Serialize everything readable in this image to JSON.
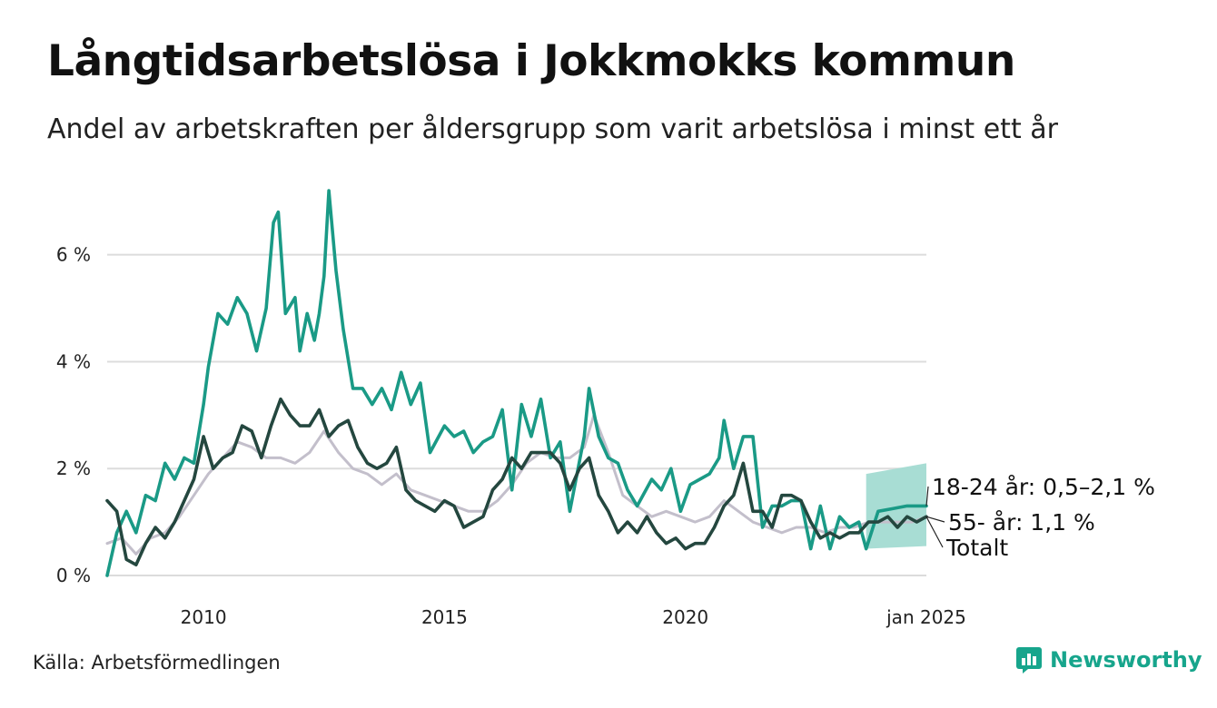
{
  "header": {
    "title": "Långtidsarbetslösa i Jokkmokks kommun",
    "subtitle": "Andel av arbetskraften per åldersgrupp som varit arbetslösa i minst ett år"
  },
  "footer": {
    "source": "Källa: Arbetsförmedlingen",
    "brand": "Newsworthy",
    "brand_color": "#17a58c"
  },
  "chart_data": {
    "type": "line",
    "title": "Långtidsarbetslösa i Jokkmokks kommun",
    "xlabel": "",
    "ylabel": "",
    "xlim": [
      2008.0,
      2025.0
    ],
    "ylim": [
      0,
      7.2
    ],
    "grid": true,
    "y_ticks": [
      {
        "value": 0,
        "label": "0 %"
      },
      {
        "value": 2,
        "label": "2 %"
      },
      {
        "value": 4,
        "label": "4 %"
      },
      {
        "value": 6,
        "label": "6 %"
      }
    ],
    "x_ticks": [
      {
        "value": 2010,
        "label": "2010"
      },
      {
        "value": 2015,
        "label": "2015"
      },
      {
        "value": 2020,
        "label": "2020"
      },
      {
        "value": 2025,
        "label": "jan 2025"
      }
    ],
    "series": [
      {
        "name": "Totalt",
        "end_label": "Totalt",
        "color": "#c3bfcb",
        "x": [
          2008.0,
          2008.3,
          2008.6,
          2008.9,
          2009.2,
          2009.5,
          2009.8,
          2010.1,
          2010.4,
          2010.7,
          2011.0,
          2011.3,
          2011.6,
          2011.9,
          2012.2,
          2012.5,
          2012.8,
          2013.1,
          2013.4,
          2013.7,
          2014.0,
          2014.3,
          2014.6,
          2014.9,
          2015.2,
          2015.5,
          2015.8,
          2016.1,
          2016.4,
          2016.7,
          2017.0,
          2017.3,
          2017.6,
          2017.9,
          2018.1,
          2018.4,
          2018.7,
          2019.0,
          2019.3,
          2019.6,
          2019.9,
          2020.2,
          2020.5,
          2020.8,
          2021.1,
          2021.4,
          2021.7,
          2022.0,
          2022.3,
          2022.6,
          2022.9,
          2023.2,
          2023.5,
          2023.8,
          2024.1,
          2024.4,
          2024.7,
          2025.0
        ],
        "y": [
          0.6,
          0.7,
          0.4,
          0.7,
          0.8,
          1.1,
          1.5,
          1.9,
          2.2,
          2.5,
          2.4,
          2.2,
          2.2,
          2.1,
          2.3,
          2.7,
          2.3,
          2.0,
          1.9,
          1.7,
          1.9,
          1.6,
          1.5,
          1.4,
          1.3,
          1.2,
          1.2,
          1.4,
          1.7,
          2.1,
          2.3,
          2.2,
          2.2,
          2.4,
          3.0,
          2.3,
          1.5,
          1.3,
          1.1,
          1.2,
          1.1,
          1.0,
          1.1,
          1.4,
          1.2,
          1.0,
          0.9,
          0.8,
          0.9,
          0.9,
          0.8,
          0.9,
          0.9,
          1.0,
          1.0,
          1.0,
          1.0,
          1.1
        ]
      },
      {
        "name": "18-24 år",
        "end_label": "18-24 år: 0,5–2,1 %",
        "color": "#1a9a86",
        "band_color": "#a3dbd2",
        "band_x": [
          2023.75,
          2025.0
        ],
        "band_lower": [
          0.5,
          0.55
        ],
        "band_upper": [
          1.9,
          2.1
        ],
        "x": [
          2008.0,
          2008.2,
          2008.4,
          2008.6,
          2008.8,
          2009.0,
          2009.2,
          2009.4,
          2009.6,
          2009.8,
          2010.0,
          2010.1,
          2010.3,
          2010.5,
          2010.7,
          2010.9,
          2011.1,
          2011.3,
          2011.45,
          2011.55,
          2011.7,
          2011.9,
          2012.0,
          2012.15,
          2012.3,
          2012.4,
          2012.5,
          2012.6,
          2012.75,
          2012.9,
          2013.1,
          2013.3,
          2013.5,
          2013.7,
          2013.9,
          2014.1,
          2014.3,
          2014.5,
          2014.7,
          2015.0,
          2015.2,
          2015.4,
          2015.6,
          2015.8,
          2016.0,
          2016.2,
          2016.4,
          2016.6,
          2016.8,
          2017.0,
          2017.2,
          2017.4,
          2017.6,
          2017.9,
          2018.0,
          2018.2,
          2018.4,
          2018.6,
          2018.8,
          2019.0,
          2019.3,
          2019.5,
          2019.7,
          2019.9,
          2020.1,
          2020.3,
          2020.5,
          2020.7,
          2020.8,
          2021.0,
          2021.2,
          2021.4,
          2021.6,
          2021.8,
          2022.0,
          2022.2,
          2022.4,
          2022.6,
          2022.8,
          2023.0,
          2023.2,
          2023.4,
          2023.6,
          2023.75,
          2024.0,
          2024.3,
          2024.6,
          2025.0
        ],
        "y": [
          0.0,
          0.8,
          1.2,
          0.8,
          1.5,
          1.4,
          2.1,
          1.8,
          2.2,
          2.1,
          3.2,
          3.9,
          4.9,
          4.7,
          5.2,
          4.9,
          4.2,
          5.0,
          6.6,
          6.8,
          4.9,
          5.2,
          4.2,
          4.9,
          4.4,
          4.9,
          5.6,
          7.2,
          5.7,
          4.6,
          3.5,
          3.5,
          3.2,
          3.5,
          3.1,
          3.8,
          3.2,
          3.6,
          2.3,
          2.8,
          2.6,
          2.7,
          2.3,
          2.5,
          2.6,
          3.1,
          1.6,
          3.2,
          2.6,
          3.3,
          2.2,
          2.5,
          1.2,
          2.6,
          3.5,
          2.6,
          2.2,
          2.1,
          1.6,
          1.3,
          1.8,
          1.6,
          2.0,
          1.2,
          1.7,
          1.8,
          1.9,
          2.2,
          2.9,
          2.0,
          2.6,
          2.6,
          0.9,
          1.3,
          1.3,
          1.4,
          1.4,
          0.5,
          1.3,
          0.5,
          1.1,
          0.9,
          1.0,
          0.5,
          1.2,
          1.25,
          1.3,
          1.3
        ]
      },
      {
        "name": "55- år",
        "end_label": "55- år: 1,1 %",
        "color": "#24473f",
        "x": [
          2008.0,
          2008.2,
          2008.4,
          2008.6,
          2008.8,
          2009.0,
          2009.2,
          2009.4,
          2009.6,
          2009.8,
          2010.0,
          2010.2,
          2010.4,
          2010.6,
          2010.8,
          2011.0,
          2011.2,
          2011.4,
          2011.6,
          2011.8,
          2012.0,
          2012.2,
          2012.4,
          2012.6,
          2012.8,
          2013.0,
          2013.2,
          2013.4,
          2013.6,
          2013.8,
          2014.0,
          2014.2,
          2014.4,
          2014.6,
          2014.8,
          2015.0,
          2015.2,
          2015.4,
          2015.6,
          2015.8,
          2016.0,
          2016.2,
          2016.4,
          2016.6,
          2016.8,
          2017.0,
          2017.2,
          2017.4,
          2017.6,
          2017.8,
          2018.0,
          2018.2,
          2018.4,
          2018.6,
          2018.8,
          2019.0,
          2019.2,
          2019.4,
          2019.6,
          2019.8,
          2020.0,
          2020.2,
          2020.4,
          2020.6,
          2020.8,
          2021.0,
          2021.2,
          2021.4,
          2021.6,
          2021.8,
          2022.0,
          2022.2,
          2022.4,
          2022.6,
          2022.8,
          2023.0,
          2023.2,
          2023.4,
          2023.6,
          2023.8,
          2024.0,
          2024.2,
          2024.4,
          2024.6,
          2024.8,
          2025.0
        ],
        "y": [
          1.4,
          1.2,
          0.3,
          0.2,
          0.6,
          0.9,
          0.7,
          1.0,
          1.4,
          1.8,
          2.6,
          2.0,
          2.2,
          2.3,
          2.8,
          2.7,
          2.2,
          2.8,
          3.3,
          3.0,
          2.8,
          2.8,
          3.1,
          2.6,
          2.8,
          2.9,
          2.4,
          2.1,
          2.0,
          2.1,
          2.4,
          1.6,
          1.4,
          1.3,
          1.2,
          1.4,
          1.3,
          0.9,
          1.0,
          1.1,
          1.6,
          1.8,
          2.2,
          2.0,
          2.3,
          2.3,
          2.3,
          2.1,
          1.6,
          2.0,
          2.2,
          1.5,
          1.2,
          0.8,
          1.0,
          0.8,
          1.1,
          0.8,
          0.6,
          0.7,
          0.5,
          0.6,
          0.6,
          0.9,
          1.3,
          1.5,
          2.1,
          1.2,
          1.2,
          0.9,
          1.5,
          1.5,
          1.4,
          1.0,
          0.7,
          0.8,
          0.7,
          0.8,
          0.8,
          1.0,
          1.0,
          1.1,
          0.9,
          1.1,
          1.0,
          1.1
        ]
      }
    ]
  }
}
